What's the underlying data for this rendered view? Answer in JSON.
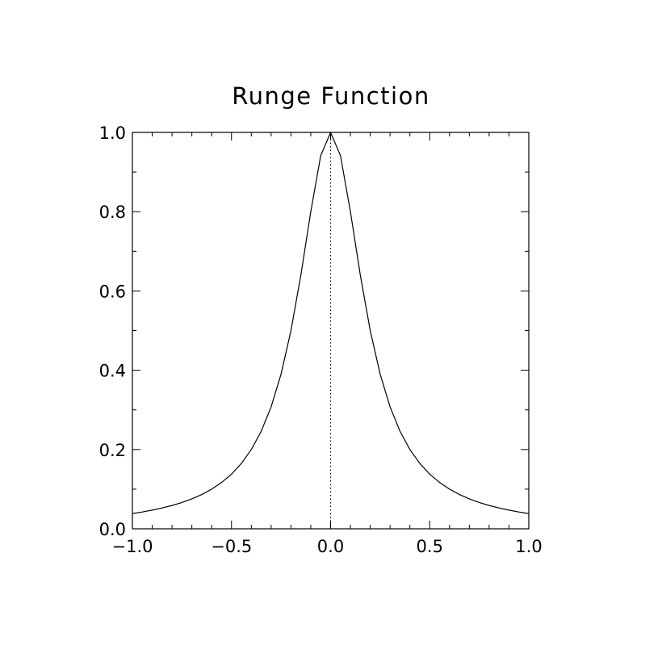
{
  "chart_data": {
    "type": "line",
    "title": "Runge Function",
    "xlabel": "",
    "ylabel": "",
    "xlim": [
      -1.0,
      1.0
    ],
    "ylim": [
      0.0,
      1.0
    ],
    "x_ticks": [
      -1.0,
      -0.5,
      0.0,
      0.5,
      1.0
    ],
    "x_tick_labels": [
      "−1.0",
      "−0.5",
      "0.0",
      "0.5",
      "1.0"
    ],
    "y_ticks": [
      0.0,
      0.2,
      0.4,
      0.6,
      0.8,
      1.0
    ],
    "y_tick_labels": [
      "0.0",
      "0.2",
      "0.4",
      "0.6",
      "0.8",
      "1.0"
    ],
    "x_minor_step": 0.1,
    "y_minor_step": 0.1,
    "grid": false,
    "legend": "none",
    "series": [
      {
        "style": "solid",
        "color": "#000000",
        "x": [
          -1.0,
          -0.95,
          -0.9,
          -0.85,
          -0.8,
          -0.75,
          -0.7,
          -0.65,
          -0.6,
          -0.55,
          -0.5,
          -0.45,
          -0.4,
          -0.35,
          -0.3,
          -0.25,
          -0.2,
          -0.15,
          -0.1,
          -0.05,
          0.0,
          0.05,
          0.1,
          0.15,
          0.2,
          0.25,
          0.3,
          0.35,
          0.4,
          0.45,
          0.5,
          0.55,
          0.6,
          0.65,
          0.7,
          0.75,
          0.8,
          0.85,
          0.9,
          0.95,
          1.0
        ],
        "y": [
          0.0385,
          0.0424,
          0.0471,
          0.0525,
          0.0588,
          0.0664,
          0.0755,
          0.0865,
          0.1,
          0.1168,
          0.1379,
          0.1649,
          0.2,
          0.2462,
          0.3077,
          0.3902,
          0.5,
          0.64,
          0.8,
          0.9412,
          1.0,
          0.9412,
          0.8,
          0.64,
          0.5,
          0.3902,
          0.3077,
          0.2462,
          0.2,
          0.1649,
          0.1379,
          0.1168,
          0.1,
          0.0865,
          0.0755,
          0.0664,
          0.0588,
          0.0525,
          0.0471,
          0.0424,
          0.0385
        ]
      },
      {
        "style": "dotted",
        "color": "#000000",
        "x": [
          0.0,
          0.0
        ],
        "y": [
          0.0,
          1.0
        ]
      }
    ]
  }
}
